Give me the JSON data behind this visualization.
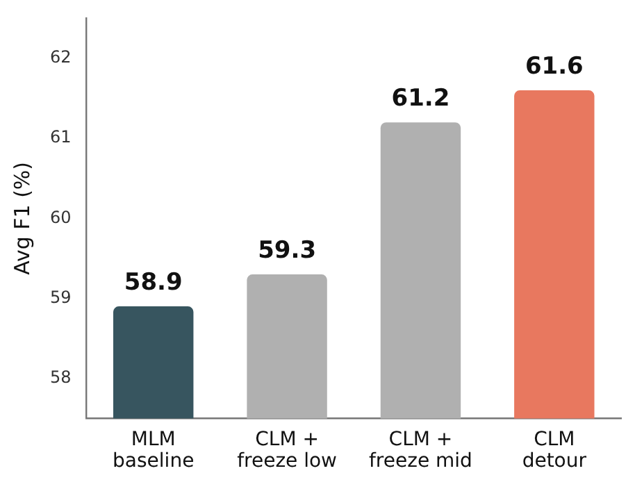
{
  "chart_data": {
    "type": "bar",
    "ylabel": "Avg F1 (%)",
    "categories": [
      "MLM\nbaseline",
      "CLM +\nfreeze low",
      "CLM +\nfreeze mid",
      "CLM\ndetour"
    ],
    "values": [
      58.9,
      59.3,
      61.2,
      61.6
    ],
    "colors": [
      "#37555f",
      "#b0b0b0",
      "#b0b0b0",
      "#e8785f"
    ],
    "ylim": [
      57.5,
      62.5
    ],
    "yticks": [
      58,
      59,
      60,
      61,
      62
    ],
    "grid": false,
    "legend": false,
    "data_labels": true
  }
}
